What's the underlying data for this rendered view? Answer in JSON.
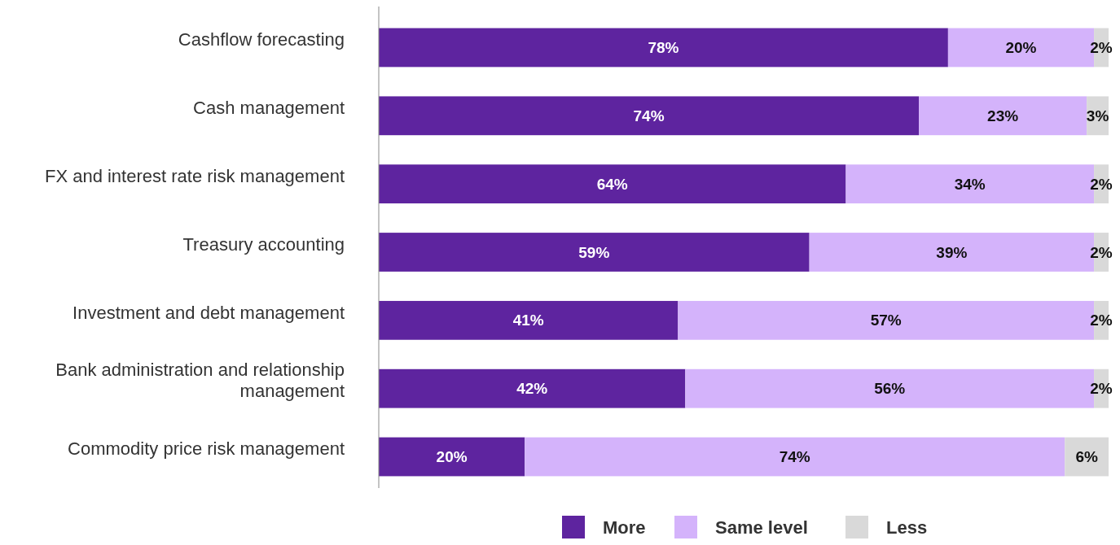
{
  "chart_data": {
    "type": "bar",
    "orientation": "horizontal",
    "stacked": true,
    "legend": "bottom",
    "categories": [
      "Cashflow forecasting",
      "Cash management",
      "FX and interest rate risk management",
      "Treasury accounting",
      "Investment and debt management",
      "Bank administration and relationship management",
      "Commodity price risk management"
    ],
    "series": [
      {
        "name": "More",
        "color": "#5e249f",
        "values": [
          78,
          74,
          64,
          59,
          41,
          42,
          20
        ],
        "value_labels": [
          "78%",
          "74%",
          "64%",
          "59%",
          "41%",
          "42%",
          "20%"
        ]
      },
      {
        "name": "Same level",
        "color": "#d4b3fb",
        "values": [
          20,
          23,
          34,
          39,
          57,
          56,
          74
        ],
        "value_labels": [
          "20%",
          "23%",
          "34%",
          "39%",
          "57%",
          "56%",
          "74%"
        ]
      },
      {
        "name": "Less",
        "color": "#d9d9d9",
        "values": [
          2,
          3,
          2,
          2,
          2,
          2,
          6
        ],
        "value_labels": [
          "2%",
          "3%",
          "2%",
          "2%",
          "2%",
          "2%",
          "6%"
        ]
      }
    ]
  }
}
